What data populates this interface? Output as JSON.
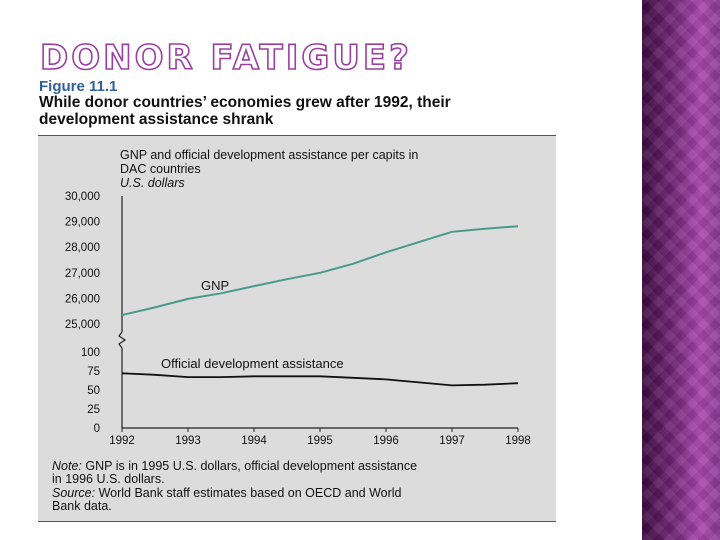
{
  "slide": {
    "title": "DONOR FATIGUE?",
    "figure_label": "Figure 11.1",
    "figure_caption": "While donor countries’ economies grew after 1992, their development assistance shrank"
  },
  "chart_data": {
    "type": "line",
    "title_lines": [
      "GNP and official development assistance per capits in",
      "DAC countries"
    ],
    "units": "U.S. dollars",
    "x": [
      1992,
      1993,
      1994,
      1995,
      1996,
      1997,
      1998
    ],
    "x_tick_labels": [
      "1992",
      "1993",
      "1994",
      "1995",
      "1996",
      "1997",
      "1998"
    ],
    "upper_panel": {
      "ylim": [
        25000,
        30000
      ],
      "y_ticks": [
        25000,
        26000,
        27000,
        28000,
        29000,
        30000
      ],
      "y_tick_labels": [
        "25,000",
        "26,000",
        "27,000",
        "28,000",
        "29,000",
        "30,000"
      ],
      "series": [
        {
          "name": "GNP",
          "x": [
            1992,
            1992.5,
            1993,
            1993.5,
            1994,
            1994.5,
            1995,
            1995.5,
            1996,
            1996.5,
            1997,
            1997.5,
            1998
          ],
          "values": [
            25350,
            25650,
            25980,
            26200,
            26480,
            26750,
            27000,
            27350,
            27800,
            28200,
            28600,
            28720,
            28820
          ],
          "color": "#4a9a8c"
        }
      ]
    },
    "lower_panel": {
      "ylim": [
        0,
        100
      ],
      "y_ticks": [
        0,
        25,
        50,
        75,
        100
      ],
      "y_tick_labels": [
        "0",
        "25",
        "50",
        "75",
        "100"
      ],
      "series": [
        {
          "name": "Official development assistance",
          "x": [
            1992,
            1992.5,
            1993,
            1993.5,
            1994,
            1994.5,
            1995,
            1995.5,
            1996,
            1996.5,
            1997,
            1997.5,
            1998
          ],
          "values": [
            72,
            70,
            67,
            67,
            68,
            68,
            68,
            66,
            64,
            60,
            56,
            57,
            59
          ],
          "color": "#111111"
        }
      ]
    },
    "note_label": "Note:",
    "note_text": "GNP is in 1995 U.S. dollars, official development assistance",
    "note_text_2": "in 1996 U.S. dollars.",
    "source_label": "Source:",
    "source_text": "World Bank staff estimates based on OECD and World",
    "source_text_2": "Bank data.",
    "grid": false
  },
  "colors": {
    "title_outline": "#9a3fa0",
    "figure_label": "#2f5f9e",
    "panel_background": "#dcdcdc",
    "side_panel": "#7a2a80"
  }
}
